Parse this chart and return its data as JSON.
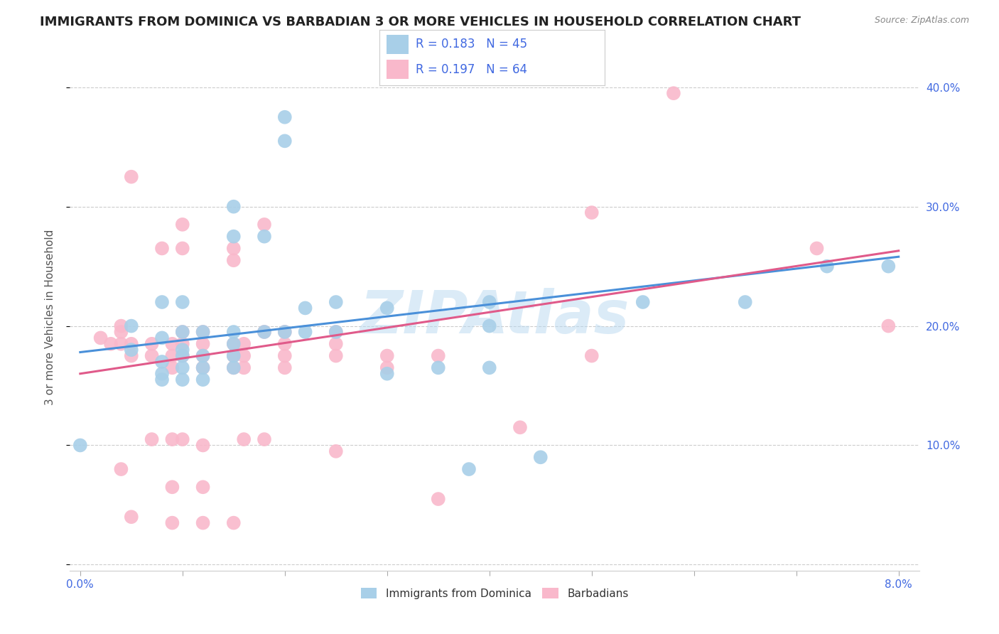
{
  "title": "IMMIGRANTS FROM DOMINICA VS BARBADIAN 3 OR MORE VEHICLES IN HOUSEHOLD CORRELATION CHART",
  "source": "Source: ZipAtlas.com",
  "ylabel": "3 or more Vehicles in Household",
  "legend_blue_R": "0.183",
  "legend_blue_N": "45",
  "legend_pink_R": "0.197",
  "legend_pink_N": "64",
  "legend_label_blue": "Immigrants from Dominica",
  "legend_label_pink": "Barbadians",
  "watermark": "ZIPAtlas",
  "blue_color": "#a8cfe8",
  "pink_color": "#f9b8cb",
  "blue_line_color": "#4a90d9",
  "pink_line_color": "#e05a8a",
  "blue_scatter": [
    [
      0.0,
      0.1
    ],
    [
      0.005,
      0.2
    ],
    [
      0.005,
      0.18
    ],
    [
      0.008,
      0.22
    ],
    [
      0.008,
      0.19
    ],
    [
      0.008,
      0.17
    ],
    [
      0.008,
      0.16
    ],
    [
      0.008,
      0.155
    ],
    [
      0.01,
      0.22
    ],
    [
      0.01,
      0.195
    ],
    [
      0.01,
      0.18
    ],
    [
      0.01,
      0.175
    ],
    [
      0.01,
      0.165
    ],
    [
      0.01,
      0.155
    ],
    [
      0.012,
      0.195
    ],
    [
      0.012,
      0.175
    ],
    [
      0.012,
      0.165
    ],
    [
      0.012,
      0.155
    ],
    [
      0.015,
      0.3
    ],
    [
      0.015,
      0.275
    ],
    [
      0.015,
      0.195
    ],
    [
      0.015,
      0.185
    ],
    [
      0.015,
      0.175
    ],
    [
      0.015,
      0.165
    ],
    [
      0.018,
      0.275
    ],
    [
      0.018,
      0.195
    ],
    [
      0.02,
      0.375
    ],
    [
      0.02,
      0.355
    ],
    [
      0.02,
      0.195
    ],
    [
      0.022,
      0.215
    ],
    [
      0.022,
      0.195
    ],
    [
      0.025,
      0.22
    ],
    [
      0.025,
      0.195
    ],
    [
      0.03,
      0.215
    ],
    [
      0.03,
      0.16
    ],
    [
      0.035,
      0.165
    ],
    [
      0.038,
      0.08
    ],
    [
      0.04,
      0.22
    ],
    [
      0.04,
      0.2
    ],
    [
      0.04,
      0.165
    ],
    [
      0.045,
      0.09
    ],
    [
      0.055,
      0.22
    ],
    [
      0.065,
      0.22
    ],
    [
      0.073,
      0.25
    ],
    [
      0.079,
      0.25
    ]
  ],
  "pink_scatter": [
    [
      0.002,
      0.19
    ],
    [
      0.003,
      0.185
    ],
    [
      0.004,
      0.2
    ],
    [
      0.004,
      0.195
    ],
    [
      0.004,
      0.185
    ],
    [
      0.004,
      0.08
    ],
    [
      0.005,
      0.325
    ],
    [
      0.005,
      0.185
    ],
    [
      0.005,
      0.175
    ],
    [
      0.005,
      0.04
    ],
    [
      0.007,
      0.185
    ],
    [
      0.007,
      0.175
    ],
    [
      0.007,
      0.105
    ],
    [
      0.008,
      0.265
    ],
    [
      0.009,
      0.185
    ],
    [
      0.009,
      0.175
    ],
    [
      0.009,
      0.165
    ],
    [
      0.009,
      0.105
    ],
    [
      0.009,
      0.065
    ],
    [
      0.009,
      0.035
    ],
    [
      0.01,
      0.285
    ],
    [
      0.01,
      0.265
    ],
    [
      0.01,
      0.195
    ],
    [
      0.01,
      0.185
    ],
    [
      0.01,
      0.175
    ],
    [
      0.01,
      0.105
    ],
    [
      0.012,
      0.195
    ],
    [
      0.012,
      0.185
    ],
    [
      0.012,
      0.175
    ],
    [
      0.012,
      0.165
    ],
    [
      0.012,
      0.1
    ],
    [
      0.012,
      0.065
    ],
    [
      0.012,
      0.035
    ],
    [
      0.015,
      0.265
    ],
    [
      0.015,
      0.255
    ],
    [
      0.015,
      0.185
    ],
    [
      0.015,
      0.175
    ],
    [
      0.015,
      0.165
    ],
    [
      0.015,
      0.035
    ],
    [
      0.016,
      0.185
    ],
    [
      0.016,
      0.175
    ],
    [
      0.016,
      0.165
    ],
    [
      0.016,
      0.105
    ],
    [
      0.018,
      0.285
    ],
    [
      0.018,
      0.195
    ],
    [
      0.018,
      0.105
    ],
    [
      0.02,
      0.195
    ],
    [
      0.02,
      0.185
    ],
    [
      0.02,
      0.175
    ],
    [
      0.02,
      0.165
    ],
    [
      0.025,
      0.195
    ],
    [
      0.025,
      0.185
    ],
    [
      0.025,
      0.175
    ],
    [
      0.025,
      0.095
    ],
    [
      0.03,
      0.175
    ],
    [
      0.03,
      0.165
    ],
    [
      0.035,
      0.175
    ],
    [
      0.035,
      0.055
    ],
    [
      0.043,
      0.115
    ],
    [
      0.05,
      0.295
    ],
    [
      0.05,
      0.175
    ],
    [
      0.058,
      0.395
    ],
    [
      0.072,
      0.265
    ],
    [
      0.079,
      0.2
    ]
  ],
  "blue_line_x": [
    0.0,
    0.08
  ],
  "blue_line_y": [
    0.178,
    0.258
  ],
  "pink_line_x": [
    0.0,
    0.08
  ],
  "pink_line_y": [
    0.16,
    0.263
  ],
  "xlim": [
    -0.001,
    0.082
  ],
  "ylim": [
    -0.005,
    0.42
  ],
  "xtick_positions": [
    0.0,
    0.01,
    0.02,
    0.03,
    0.04,
    0.05,
    0.06,
    0.07,
    0.08
  ],
  "ytick_positions": [
    0.0,
    0.1,
    0.2,
    0.3,
    0.4
  ],
  "right_ytick_labels": [
    "",
    "10.0%",
    "20.0%",
    "30.0%",
    "40.0%"
  ],
  "legend_text_color": "#4169e1",
  "tick_label_color": "#4169e1",
  "title_fontsize": 13,
  "axis_label_fontsize": 11,
  "tick_fontsize": 11,
  "grid_color": "#cccccc",
  "watermark_color": "#b8d8f0",
  "watermark_alpha": 0.5,
  "watermark_fontsize": 60
}
